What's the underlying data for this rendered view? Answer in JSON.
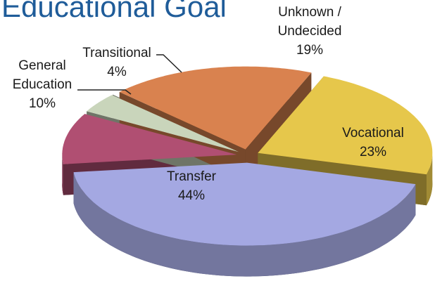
{
  "chart_data": {
    "type": "pie",
    "title": "Educational Goal",
    "categories": [
      "Transfer",
      "General Education",
      "Transitional",
      "Unknown / Undecided",
      "Vocational"
    ],
    "values": [
      44,
      10,
      4,
      19,
      23
    ],
    "value_labels": [
      "44%",
      "10%",
      "4%",
      "19%",
      "23%"
    ],
    "colors": [
      "#a4a8e2",
      "#b04f72",
      "#c9d5bb",
      "#d9824f",
      "#e6c74b"
    ]
  }
}
